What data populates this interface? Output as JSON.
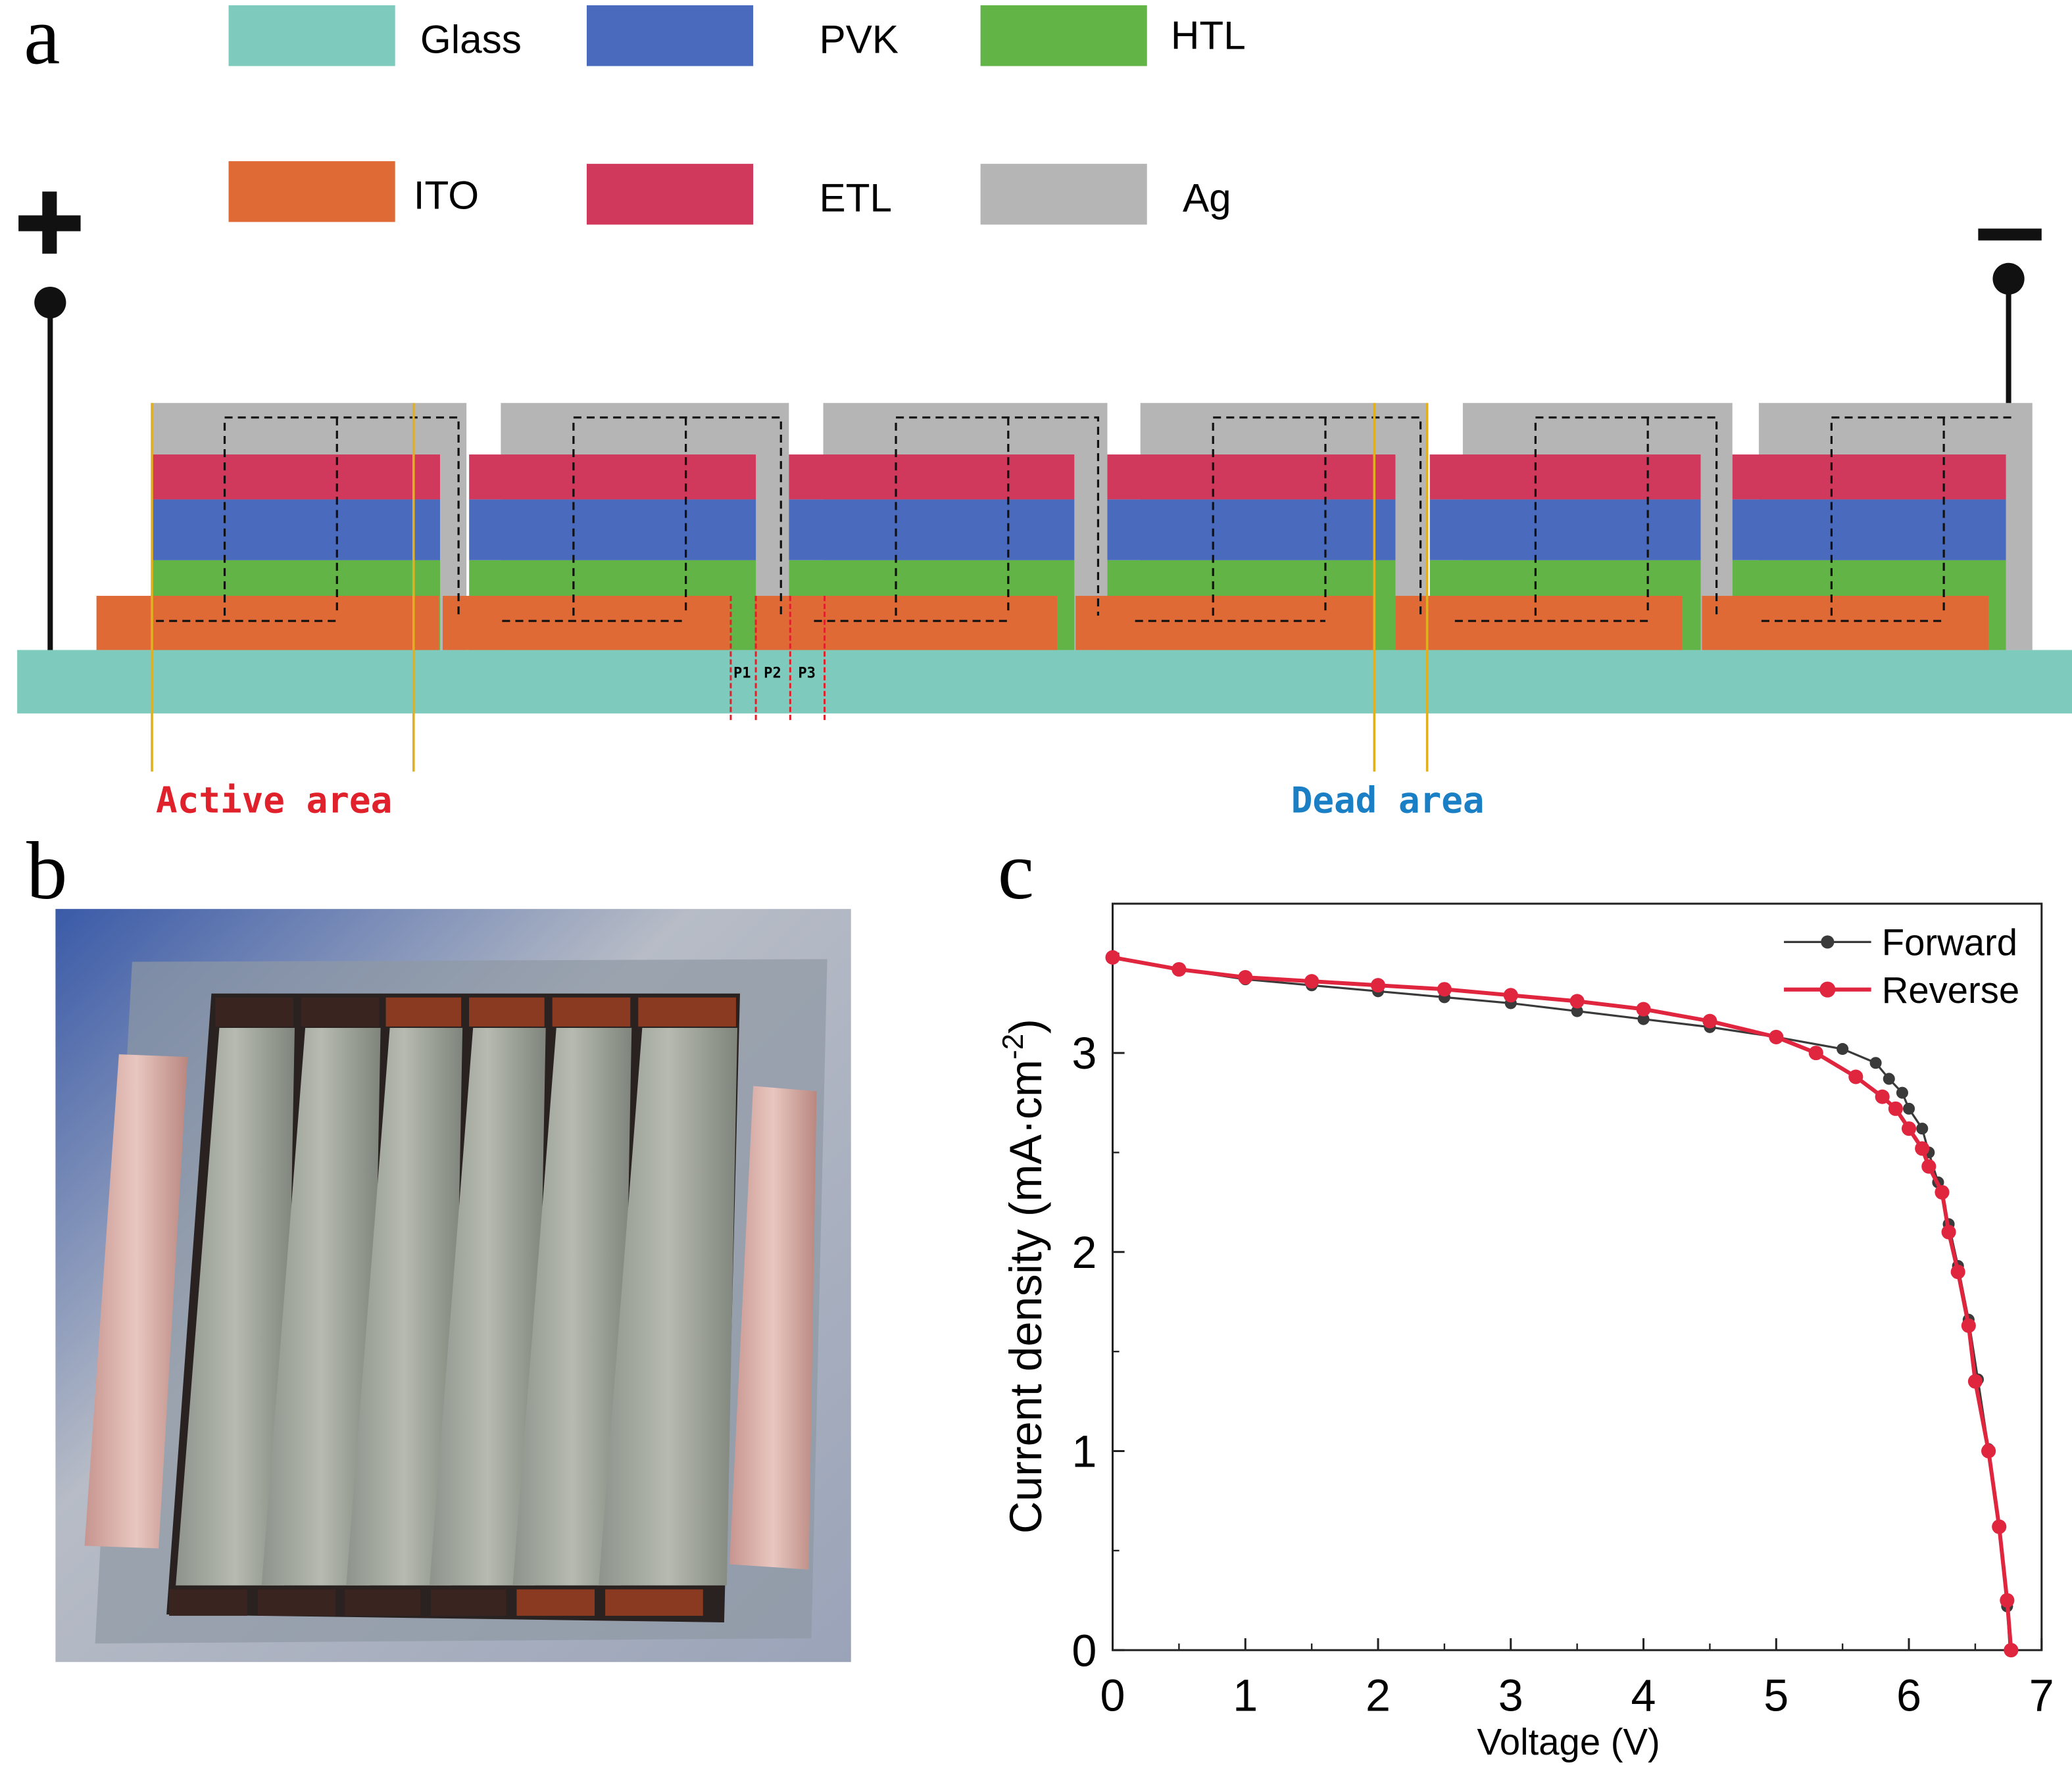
{
  "panel_labels": {
    "a": "a",
    "b": "b",
    "c": "c"
  },
  "legend": [
    {
      "label": "Glass",
      "color": "#7ecbbd"
    },
    {
      "label": "PVK",
      "color": "#4a6bbd"
    },
    {
      "label": "HTL",
      "color": "#63b446"
    },
    {
      "label": "ITO",
      "color": "#e06a35"
    },
    {
      "label": "ETL",
      "color": "#d0395c"
    },
    {
      "label": "Ag",
      "color": "#b5b5b5"
    }
  ],
  "terminals": {
    "positive": "+",
    "negative": "−"
  },
  "scribe_labels": [
    "P1",
    "P2",
    "P3"
  ],
  "area_labels": {
    "active": "Active area",
    "dead": "Dead area",
    "active_color": "#e0202a",
    "dead_color": "#1a7fc4"
  },
  "chart_data": {
    "type": "line",
    "xlabel": "Voltage (V)",
    "ylabel": "Current density (mA·cm",
    "ylabel_sup": "-2",
    "ylabel_end": ")",
    "xlim": [
      0,
      7
    ],
    "ylim": [
      0,
      3.75
    ],
    "xticks": [
      0,
      1,
      2,
      3,
      4,
      5,
      6,
      7
    ],
    "yticks": [
      0,
      1,
      2,
      3
    ],
    "grid": false,
    "legend_placement": "top-right",
    "series": [
      {
        "name": "Forward",
        "color": "#3a3a3a",
        "x": [
          0,
          0.5,
          1,
          1.5,
          2,
          2.5,
          3,
          3.5,
          4,
          4.5,
          5,
          5.5,
          5.75,
          5.85,
          5.95,
          6.0,
          6.1,
          6.15,
          6.22,
          6.3,
          6.37,
          6.45,
          6.52,
          6.6,
          6.68,
          6.74,
          6.76
        ],
        "y": [
          3.48,
          3.42,
          3.37,
          3.34,
          3.31,
          3.28,
          3.25,
          3.21,
          3.17,
          3.13,
          3.08,
          3.02,
          2.95,
          2.87,
          2.8,
          2.72,
          2.62,
          2.5,
          2.35,
          2.14,
          1.93,
          1.66,
          1.36,
          1.01,
          0.62,
          0.22,
          0
        ]
      },
      {
        "name": "Reverse",
        "color": "#e0253f",
        "x": [
          0,
          0.5,
          1,
          1.5,
          2,
          2.5,
          3,
          3.5,
          4,
          4.5,
          5,
          5.3,
          5.6,
          5.8,
          5.9,
          6.0,
          6.1,
          6.15,
          6.25,
          6.3,
          6.37,
          6.45,
          6.5,
          6.6,
          6.68,
          6.74,
          6.77
        ],
        "y": [
          3.48,
          3.42,
          3.38,
          3.36,
          3.34,
          3.32,
          3.29,
          3.26,
          3.22,
          3.16,
          3.08,
          3.0,
          2.88,
          2.78,
          2.72,
          2.62,
          2.52,
          2.43,
          2.3,
          2.1,
          1.9,
          1.63,
          1.35,
          1.0,
          0.62,
          0.25,
          0
        ]
      }
    ]
  }
}
